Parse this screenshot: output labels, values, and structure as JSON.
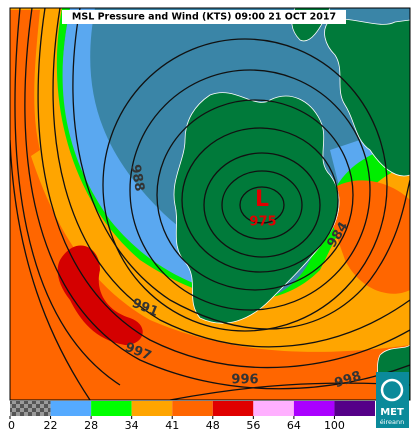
{
  "title": "MSL Pressure and Wind (KTS) 09:00 21 OCT 2017",
  "low": {
    "symbol": "L",
    "pressure": 975
  },
  "isobar_labels": [
    988,
    984,
    991,
    997,
    996,
    998
  ],
  "legend": {
    "ticks": [
      0,
      22,
      28,
      34,
      41,
      48,
      56,
      64,
      100
    ],
    "colors": [
      "#8a8a8a",
      "#55aaff",
      "#00ff00",
      "#ffa500",
      "#ff6600",
      "#e00000",
      "#ffb0ff",
      "#aa00ff",
      "#550088"
    ]
  },
  "logo": {
    "line1": "MET",
    "line2": "éireann"
  }
}
